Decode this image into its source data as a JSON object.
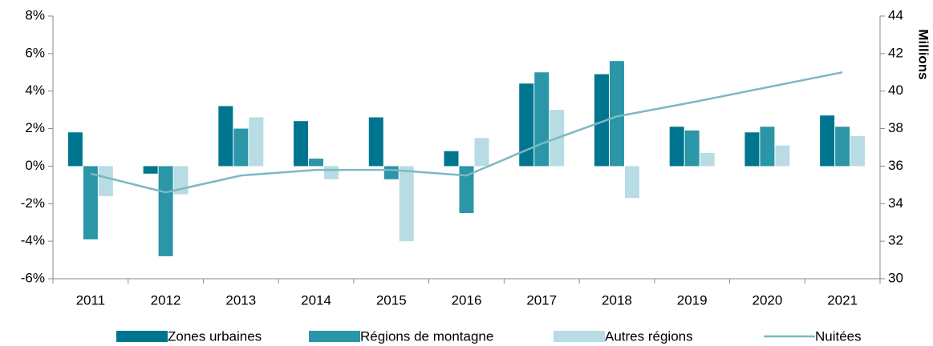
{
  "chart_data": {
    "type": "bar",
    "categories": [
      "2011",
      "2012",
      "2013",
      "2014",
      "2015",
      "2016",
      "2017",
      "2018",
      "2019",
      "2020",
      "2021"
    ],
    "series": [
      {
        "name": "Zones urbaines",
        "color": "#00758f",
        "values": [
          1.8,
          -0.4,
          3.2,
          2.4,
          2.6,
          0.8,
          4.4,
          4.9,
          2.1,
          1.8,
          2.7
        ]
      },
      {
        "name": "Régions de montagne",
        "color": "#2a96a8",
        "values": [
          -3.9,
          -4.8,
          2.0,
          0.4,
          -0.7,
          -2.5,
          5.0,
          5.6,
          1.9,
          2.1,
          2.1
        ]
      },
      {
        "name": "Autres régions",
        "color": "#b8dce3",
        "values": [
          -1.6,
          -1.5,
          2.6,
          -0.7,
          -4.0,
          1.5,
          3.0,
          -1.7,
          0.7,
          1.1,
          1.6
        ]
      },
      {
        "name": "Nuitées",
        "color": "#7db8c4",
        "type": "line",
        "axis": "y2",
        "values": [
          35.6,
          34.6,
          35.5,
          35.8,
          35.8,
          35.5,
          37.2,
          38.65,
          39.4,
          40.2,
          41.0
        ]
      }
    ],
    "ylim": [
      -6,
      8
    ],
    "yticks": [
      {
        "value": -6,
        "label": "-6%"
      },
      {
        "value": -4,
        "label": "-4%"
      },
      {
        "value": -2,
        "label": "-2%"
      },
      {
        "value": 0,
        "label": "0%"
      },
      {
        "value": 2,
        "label": "2%"
      },
      {
        "value": 4,
        "label": "4%"
      },
      {
        "value": 6,
        "label": "6%"
      },
      {
        "value": 8,
        "label": "8%"
      }
    ],
    "y2lim": [
      30,
      44
    ],
    "y2ticks": [
      30,
      32,
      34,
      36,
      38,
      40,
      42,
      44
    ],
    "y2label": "Millions",
    "legend": "bottom"
  }
}
